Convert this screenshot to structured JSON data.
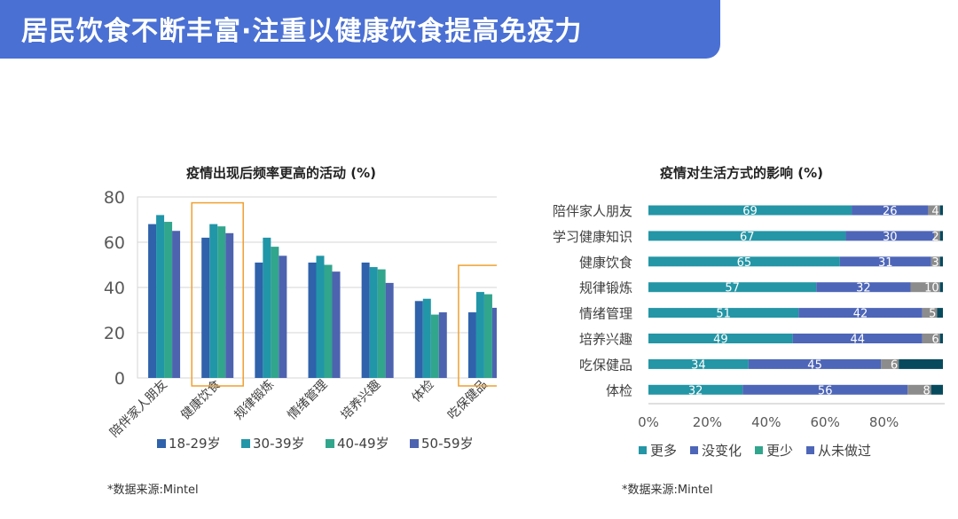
{
  "header": {
    "title": "居民饮食不断丰富·注重以健康饮食提高免疫力"
  },
  "colors": {
    "banner": "#4a70d4",
    "series": [
      "#2f62ab",
      "#2196a8",
      "#32a58d",
      "#4d63b0"
    ],
    "stack": [
      "#2496a6",
      "#4e66b8",
      "#8c8c8c",
      "#074a5e"
    ],
    "highlight": "#f0a030"
  },
  "chart_data": [
    {
      "type": "bar",
      "title": "疫情出现后频率更高的活动 (%)",
      "categories": [
        "陪伴家人朋友",
        "健康饮食",
        "规律锻炼",
        "情绪管理",
        "培养兴趣",
        "体检",
        "吃保健品"
      ],
      "series": [
        {
          "name": "18-29岁",
          "values": [
            68,
            62,
            51,
            51,
            51,
            34,
            29
          ]
        },
        {
          "name": "30-39岁",
          "values": [
            72,
            68,
            62,
            54,
            49,
            35,
            38
          ]
        },
        {
          "name": "40-49岁",
          "values": [
            69,
            67,
            58,
            50,
            48,
            28,
            37
          ]
        },
        {
          "name": "50-59岁",
          "values": [
            65,
            64,
            54,
            47,
            42,
            29,
            31
          ]
        }
      ],
      "ylim": [
        0,
        80
      ],
      "yticks": [
        "0",
        "20",
        "40",
        "60",
        "80"
      ],
      "grid": true,
      "legend": "bottom",
      "highlighted_categories": [
        "健康饮食",
        "吃保健品"
      ]
    },
    {
      "type": "bar",
      "orientation": "horizontal",
      "stacked": true,
      "title": "疫情对生活方式的影响 (%)",
      "categories": [
        "陪伴家人朋友",
        "学习健康知识",
        "健康饮食",
        "规律锻炼",
        "情绪管理",
        "培养兴趣",
        "吃保健品",
        "体检"
      ],
      "series": [
        {
          "name": "更多",
          "values": [
            69,
            67,
            65,
            57,
            51,
            49,
            34,
            32
          ]
        },
        {
          "name": "没变化",
          "values": [
            26,
            30,
            31,
            32,
            42,
            44,
            45,
            56
          ]
        },
        {
          "name": "更少",
          "values": [
            4,
            2,
            3,
            10,
            5,
            6,
            6,
            8
          ]
        },
        {
          "name": "从未做过",
          "values": [
            1,
            1,
            1,
            1,
            2,
            1,
            15,
            4
          ]
        }
      ],
      "value_labels": [
        [
          "69",
          "26",
          "4",
          ""
        ],
        [
          "67",
          "30",
          "2",
          ""
        ],
        [
          "65",
          "31",
          "3",
          ""
        ],
        [
          "57",
          "32",
          "10",
          ""
        ],
        [
          "51",
          "42",
          "5",
          ""
        ],
        [
          "49",
          "44",
          "6",
          ""
        ],
        [
          "34",
          "45",
          "6",
          ""
        ],
        [
          "32",
          "56",
          "8",
          ""
        ]
      ],
      "xlim": [
        0,
        100
      ],
      "xticks": [
        "0%",
        "20%",
        "40%",
        "60%",
        "80%"
      ],
      "legend": "bottom"
    }
  ],
  "sources": {
    "left": "*数据来源:Mintel",
    "right": "*数据来源:Mintel"
  }
}
